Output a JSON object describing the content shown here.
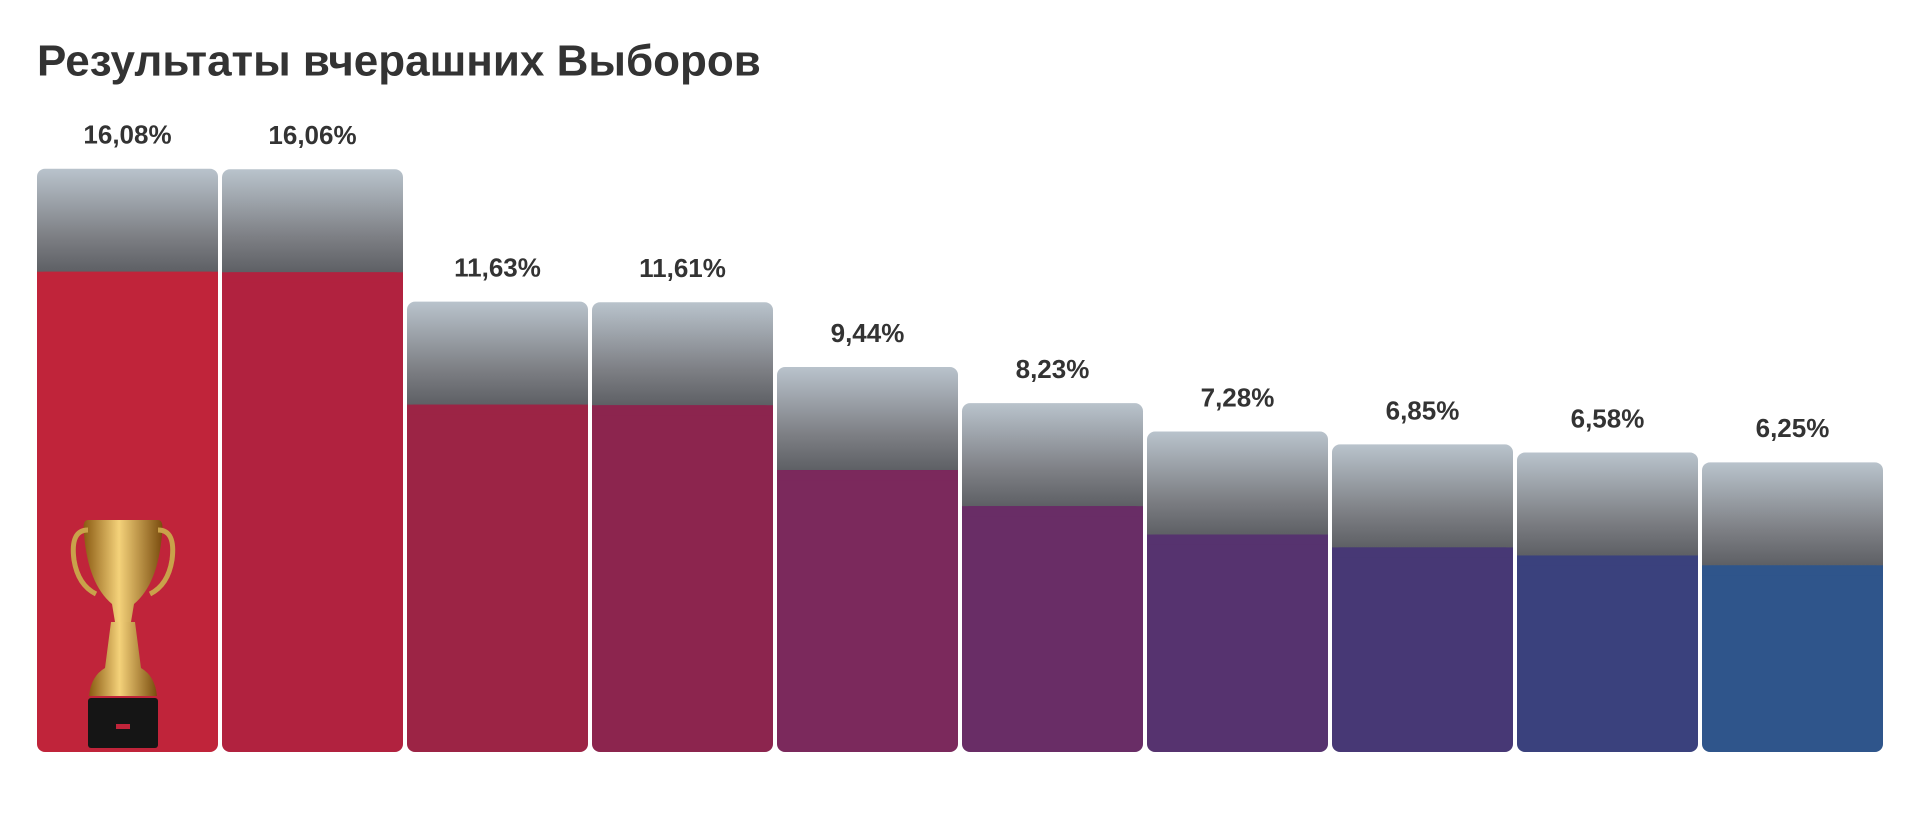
{
  "chart_data": {
    "type": "bar",
    "title": "Результаты вчерашних Выборов",
    "values": [
      16.08,
      16.06,
      11.63,
      11.61,
      9.44,
      8.23,
      7.28,
      6.85,
      6.58,
      6.25
    ],
    "value_labels": [
      "16,08%",
      "16,06%",
      "11,63%",
      "11,61%",
      "9,44%",
      "8,23%",
      "7,28%",
      "6,85%",
      "6,58%",
      "6,25%"
    ],
    "colors": [
      "#c0243a",
      "#b1223f",
      "#9c2445",
      "#8c254e",
      "#7b295c",
      "#692d66",
      "#56336f",
      "#473875",
      "#3a417d",
      "#2f558b"
    ]
  }
}
